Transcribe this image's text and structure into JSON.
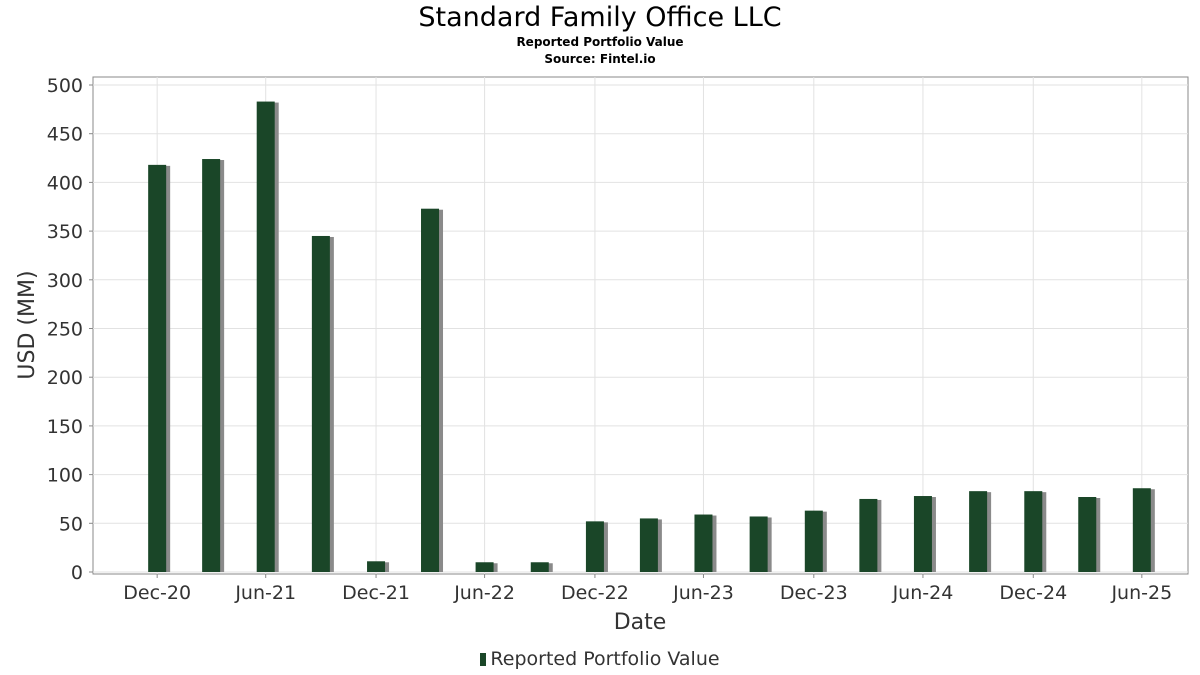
{
  "chart_data": {
    "type": "bar",
    "title": "Standard Family Office LLC",
    "subtitles": [
      "Reported Portfolio Value",
      "Source: Fintel.io"
    ],
    "xlabel": "Date",
    "ylabel": "USD (MM)",
    "ylim": [
      0,
      500
    ],
    "yticks": [
      0,
      50,
      100,
      150,
      200,
      250,
      300,
      350,
      400,
      450,
      500
    ],
    "x_range": [
      "2020-09-15",
      "2025-09-15"
    ],
    "xtick_labels": [
      "Dec-20",
      "Jun-21",
      "Dec-21",
      "Jun-22",
      "Dec-22",
      "Jun-23",
      "Dec-23",
      "Jun-24",
      "Dec-24",
      "Jun-25"
    ],
    "xtick_dates": [
      "2020-12-31",
      "2021-06-30",
      "2021-12-31",
      "2022-06-30",
      "2022-12-31",
      "2023-06-30",
      "2023-12-31",
      "2024-06-30",
      "2024-12-31",
      "2025-06-30"
    ],
    "grid": true,
    "legend_position": "bottom",
    "series": [
      {
        "name": "Reported Portfolio Value",
        "color": "#1a4628",
        "x": [
          "2020-12-31",
          "2021-03-31",
          "2021-06-30",
          "2021-09-30",
          "2021-12-31",
          "2022-03-31",
          "2022-06-30",
          "2022-09-30",
          "2022-12-31",
          "2023-03-31",
          "2023-06-30",
          "2023-09-30",
          "2023-12-31",
          "2024-03-31",
          "2024-06-30",
          "2024-09-30",
          "2024-12-31",
          "2025-03-31",
          "2025-06-30"
        ],
        "values": [
          418,
          424,
          483,
          345,
          11,
          373,
          10,
          10,
          52,
          55,
          59,
          57,
          63,
          75,
          78,
          83,
          83,
          77,
          86
        ]
      }
    ]
  }
}
